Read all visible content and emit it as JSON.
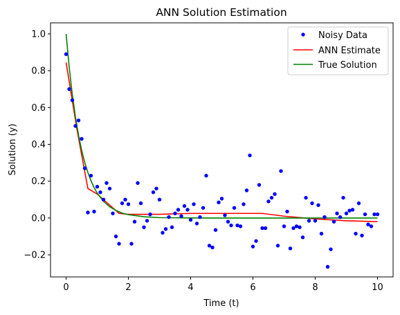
{
  "chart_data": {
    "type": "scatter",
    "title": "ANN Solution Estimation",
    "xlabel": "Time (t)",
    "ylabel": "Solution (y)",
    "xlim": [
      -0.5,
      10.5
    ],
    "ylim": [
      -0.32,
      1.06
    ],
    "xticks": [
      0,
      2,
      4,
      6,
      8,
      10
    ],
    "xtick_labels": [
      "0",
      "2",
      "4",
      "6",
      "8",
      "10"
    ],
    "yticks": [
      -0.2,
      0.0,
      0.2,
      0.4,
      0.6,
      0.8,
      1.0
    ],
    "ytick_labels": [
      "−0.2",
      "0.0",
      "0.2",
      "0.4",
      "0.6",
      "0.8",
      "1.0"
    ],
    "grid": false,
    "legend": {
      "position": "top-right",
      "entries": [
        "Noisy Data",
        "ANN Estimate",
        "True Solution"
      ]
    },
    "series": [
      {
        "name": "Noisy Data",
        "kind": "scatter",
        "color": "#0000ff",
        "x": [
          0.0,
          0.1,
          0.2,
          0.3,
          0.4,
          0.5,
          0.6,
          0.7,
          0.8,
          0.9,
          1.0,
          1.1,
          1.2,
          1.3,
          1.4,
          1.5,
          1.6,
          1.7,
          1.8,
          1.9,
          2.0,
          2.1,
          2.2,
          2.3,
          2.4,
          2.5,
          2.6,
          2.7,
          2.8,
          2.9,
          3.0,
          3.1,
          3.2,
          3.3,
          3.4,
          3.5,
          3.6,
          3.7,
          3.8,
          3.9,
          4.0,
          4.1,
          4.2,
          4.3,
          4.4,
          4.5,
          4.6,
          4.7,
          4.8,
          4.9,
          5.0,
          5.1,
          5.2,
          5.3,
          5.4,
          5.5,
          5.6,
          5.7,
          5.8,
          5.9,
          6.0,
          6.1,
          6.2,
          6.3,
          6.4,
          6.5,
          6.6,
          6.7,
          6.8,
          6.9,
          7.0,
          7.1,
          7.2,
          7.3,
          7.4,
          7.5,
          7.6,
          7.7,
          7.8,
          7.9,
          8.0,
          8.1,
          8.2,
          8.3,
          8.4,
          8.5,
          8.6,
          8.7,
          8.8,
          8.9,
          9.0,
          9.1,
          9.2,
          9.3,
          9.4,
          9.5,
          9.6,
          9.7,
          9.8,
          9.9,
          10.0
        ],
        "y": [
          0.89,
          0.7,
          0.64,
          0.5,
          0.53,
          0.43,
          0.27,
          0.03,
          0.23,
          0.035,
          0.17,
          0.14,
          0.1,
          0.19,
          0.16,
          0.025,
          -0.1,
          -0.14,
          0.08,
          0.1,
          0.075,
          -0.14,
          -0.02,
          0.19,
          0.08,
          -0.05,
          -0.015,
          0.02,
          0.14,
          0.16,
          0.1,
          -0.08,
          -0.06,
          0.005,
          -0.05,
          0.025,
          0.045,
          0.01,
          0.065,
          0.045,
          -0.01,
          0.075,
          -0.03,
          0.005,
          0.055,
          0.23,
          -0.15,
          -0.16,
          -0.065,
          0.085,
          0.105,
          0.015,
          -0.02,
          -0.04,
          0.055,
          -0.04,
          -0.045,
          0.075,
          0.15,
          0.34,
          -0.155,
          -0.125,
          0.18,
          -0.055,
          -0.055,
          0.09,
          0.11,
          0.13,
          -0.15,
          0.255,
          -0.045,
          0.035,
          -0.165,
          -0.055,
          -0.045,
          -0.05,
          -0.105,
          0.11,
          -0.015,
          0.08,
          -0.015,
          0.07,
          -0.085,
          0.005,
          -0.265,
          -0.17,
          -0.02,
          0.025,
          0.005,
          0.11,
          0.025,
          0.04,
          0.045,
          -0.085,
          0.08,
          -0.095,
          0.02,
          -0.035,
          -0.045,
          0.02,
          0.02
        ]
      },
      {
        "name": "ANN Estimate",
        "kind": "line",
        "color": "#ff0000",
        "x": [
          0.0,
          0.35,
          0.7,
          1.0,
          1.3,
          1.7,
          2.0,
          3.0,
          4.0,
          5.0,
          6.0,
          6.3,
          7.0,
          8.0,
          9.0,
          10.0
        ],
        "y": [
          0.845,
          0.48,
          0.16,
          0.13,
          0.085,
          0.025,
          0.02,
          0.02,
          0.025,
          0.025,
          0.025,
          0.025,
          0.01,
          -0.005,
          -0.015,
          -0.02
        ]
      },
      {
        "name": "True Solution",
        "kind": "line",
        "color": "#008000",
        "x": [
          0.0,
          0.1,
          0.2,
          0.3,
          0.4,
          0.5,
          0.6,
          0.7,
          0.8,
          0.9,
          1.0,
          1.2,
          1.4,
          1.6,
          1.8,
          2.0,
          2.5,
          3.0,
          4.0,
          5.0,
          6.0,
          7.0,
          8.0,
          9.0,
          10.0
        ],
        "y": [
          1.0,
          0.819,
          0.67,
          0.549,
          0.449,
          0.368,
          0.301,
          0.247,
          0.202,
          0.165,
          0.135,
          0.091,
          0.061,
          0.041,
          0.027,
          0.018,
          0.007,
          0.002,
          0.0003,
          0.0,
          0.0,
          0.0,
          0.0,
          0.0,
          0.0
        ]
      }
    ]
  }
}
